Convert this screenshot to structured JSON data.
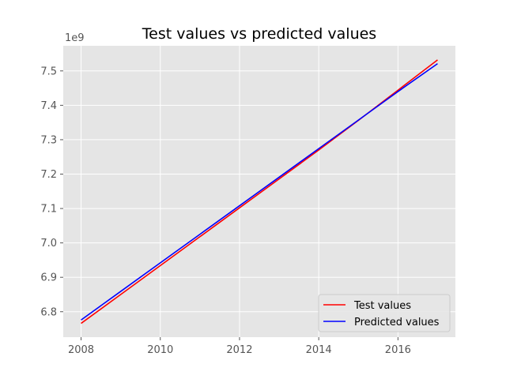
{
  "chart_data": {
    "type": "line",
    "title": "Test values vs predicted values",
    "xlabel": "",
    "ylabel": "",
    "y_offset_label": "1e9",
    "y_scale": 1000000000,
    "xlim": [
      2007.55,
      2017.45
    ],
    "ylim": [
      6726000000,
      7573000000
    ],
    "x_ticks": [
      2008,
      2010,
      2012,
      2014,
      2016
    ],
    "x_tick_labels": [
      "2008",
      "2010",
      "2012",
      "2014",
      "2016"
    ],
    "y_ticks": [
      6.8,
      6.9,
      7.0,
      7.1,
      7.2,
      7.3,
      7.4,
      7.5
    ],
    "y_tick_labels": [
      "6.8",
      "6.9",
      "7.0",
      "7.1",
      "7.2",
      "7.3",
      "7.4",
      "7.5"
    ],
    "grid": true,
    "legend_position": "lower-right",
    "series": [
      {
        "name": "Test values",
        "color": "#ff0000",
        "x": [
          2008,
          2009,
          2010,
          2011,
          2012,
          2013,
          2014,
          2015,
          2016,
          2017
        ],
        "y": [
          6766000000,
          6850000000,
          6934000000,
          7018000000,
          7102000000,
          7186000000,
          7270000000,
          7356000000,
          7444000000,
          7532000000
        ]
      },
      {
        "name": "Predicted values",
        "color": "#0000ff",
        "x": [
          2008,
          2009,
          2010,
          2011,
          2012,
          2013,
          2014,
          2015,
          2016,
          2017
        ],
        "y": [
          6776000000,
          6859000000,
          6942000000,
          7025000000,
          7108000000,
          7191000000,
          7274000000,
          7357000000,
          7440000000,
          7521000000
        ]
      }
    ]
  },
  "colors": {
    "plot_background": "#e5e5e5",
    "grid": "#ffffff",
    "tick": "#555555"
  }
}
